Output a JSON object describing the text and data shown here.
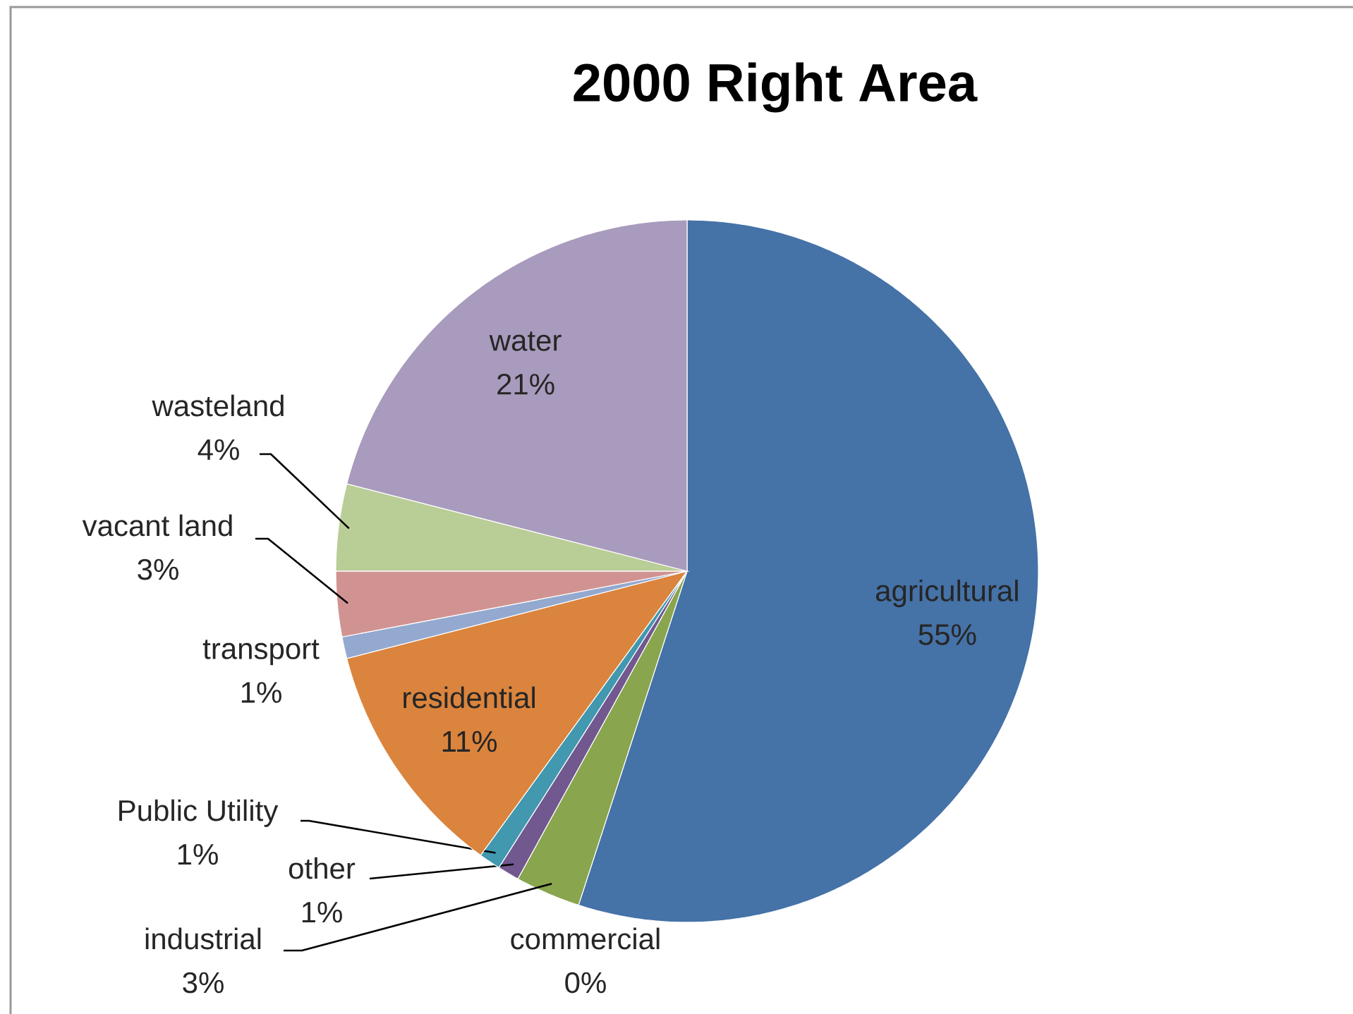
{
  "chart_data": {
    "type": "pie",
    "title": "2000 Right Area",
    "categories": [
      "agricultural",
      "commercial",
      "industrial",
      "other",
      "Public Utility",
      "residential",
      "transport",
      "vacant land",
      "wasteland",
      "water"
    ],
    "values": [
      55,
      0,
      3,
      1,
      1,
      11,
      1,
      3,
      4,
      21
    ],
    "value_labels": [
      "55%",
      "0%",
      "3%",
      "1%",
      "1%",
      "11%",
      "1%",
      "3%",
      "4%",
      "21%"
    ],
    "colors": [
      "#4572a7",
      "#aa4643",
      "#89a54e",
      "#71588f",
      "#4198af",
      "#db843d",
      "#93a9cf",
      "#d19392",
      "#b9cd96",
      "#a99bbd"
    ]
  }
}
